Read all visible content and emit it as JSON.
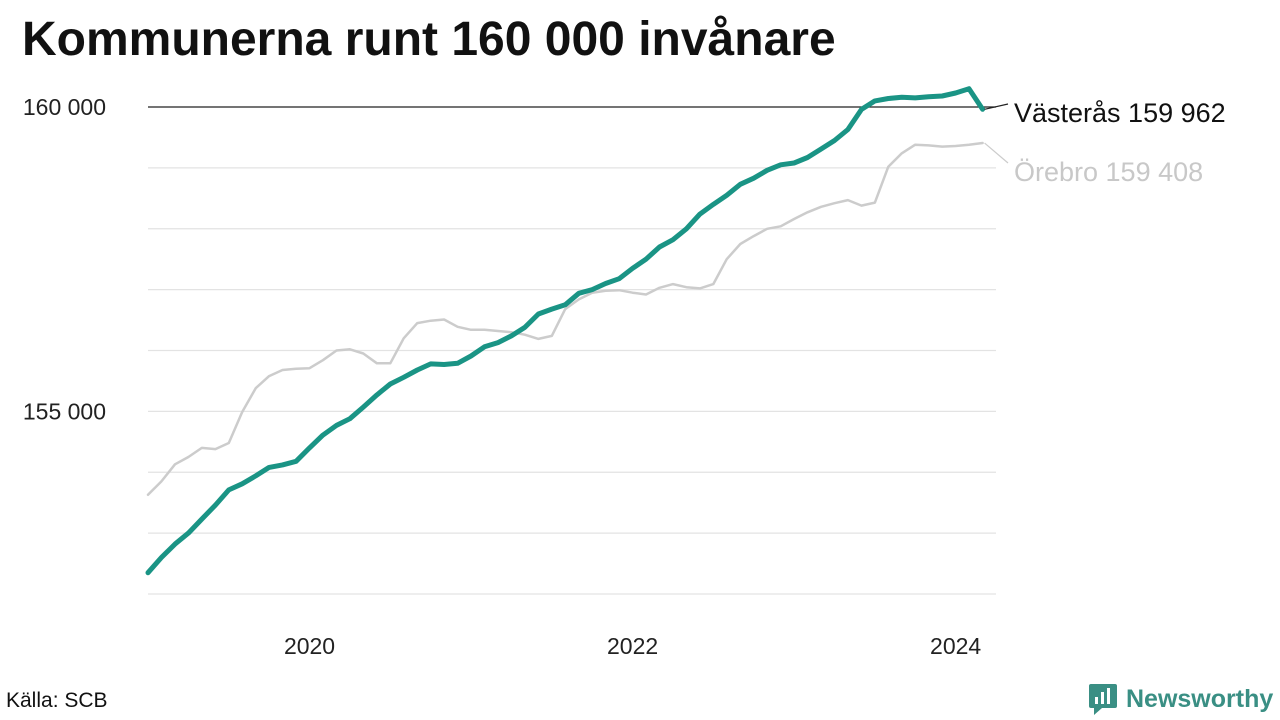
{
  "title": "Kommunerna runt 160 000 invånare",
  "source": "Källa: SCB",
  "brand": {
    "name": "Newsworthy",
    "icon": "newsworthy-logo-icon",
    "color": "#3a8f84"
  },
  "chart_data": {
    "type": "line",
    "title": "Kommunerna runt 160 000 invånare",
    "xlabel": "",
    "ylabel": "",
    "x_ticks": [
      {
        "label": "2020",
        "value": 2020.0
      },
      {
        "label": "2022",
        "value": 2022.0
      },
      {
        "label": "2024",
        "value": 2024.0
      }
    ],
    "y_ticks": [
      {
        "label": "155 000",
        "value": 155000
      },
      {
        "label": "160 000",
        "value": 160000
      }
    ],
    "xlim": [
      2019.0,
      2024.25
    ],
    "ylim": [
      152000,
      160000
    ],
    "grid": true,
    "reference_line": 160000,
    "series": [
      {
        "name": "Örebro",
        "end_label": "Örebro 159 408",
        "color": "#cccccc",
        "x": [
          2019.0,
          2019.083,
          2019.167,
          2019.25,
          2019.333,
          2019.417,
          2019.5,
          2019.583,
          2019.667,
          2019.75,
          2019.833,
          2019.917,
          2020.0,
          2020.083,
          2020.167,
          2020.25,
          2020.333,
          2020.417,
          2020.5,
          2020.583,
          2020.667,
          2020.75,
          2020.833,
          2020.917,
          2021.0,
          2021.083,
          2021.167,
          2021.25,
          2021.333,
          2021.417,
          2021.5,
          2021.583,
          2021.667,
          2021.75,
          2021.833,
          2021.917,
          2022.0,
          2022.083,
          2022.167,
          2022.25,
          2022.333,
          2022.417,
          2022.5,
          2022.583,
          2022.667,
          2022.75,
          2022.833,
          2022.917,
          2023.0,
          2023.083,
          2023.167,
          2023.25,
          2023.333,
          2023.417,
          2023.5,
          2023.583,
          2023.667,
          2023.75,
          2023.833,
          2023.917,
          2024.0,
          2024.083,
          2024.167
        ],
        "values": [
          153630,
          153850,
          154130,
          154250,
          154400,
          154380,
          154480,
          154990,
          155380,
          155580,
          155680,
          155700,
          155710,
          155840,
          156000,
          156020,
          155950,
          155790,
          155790,
          156200,
          156450,
          156490,
          156510,
          156390,
          156340,
          156340,
          156320,
          156300,
          156260,
          156190,
          156240,
          156680,
          156840,
          156950,
          156980,
          156990,
          156950,
          156920,
          157030,
          157090,
          157040,
          157020,
          157090,
          157500,
          157750,
          157880,
          158000,
          158040,
          158160,
          158270,
          158360,
          158420,
          158470,
          158380,
          158430,
          159020,
          159240,
          159380,
          159370,
          159350,
          159360,
          159380,
          159408
        ]
      },
      {
        "name": "Västerås",
        "end_label": "Västerås 159 962",
        "color": "#1a9485",
        "x": [
          2019.0,
          2019.083,
          2019.167,
          2019.25,
          2019.333,
          2019.417,
          2019.5,
          2019.583,
          2019.667,
          2019.75,
          2019.833,
          2019.917,
          2020.0,
          2020.083,
          2020.167,
          2020.25,
          2020.333,
          2020.417,
          2020.5,
          2020.583,
          2020.667,
          2020.75,
          2020.833,
          2020.917,
          2021.0,
          2021.083,
          2021.167,
          2021.25,
          2021.333,
          2021.417,
          2021.5,
          2021.583,
          2021.667,
          2021.75,
          2021.833,
          2021.917,
          2022.0,
          2022.083,
          2022.167,
          2022.25,
          2022.333,
          2022.417,
          2022.5,
          2022.583,
          2022.667,
          2022.75,
          2022.833,
          2022.917,
          2023.0,
          2023.083,
          2023.167,
          2023.25,
          2023.333,
          2023.417,
          2023.5,
          2023.583,
          2023.667,
          2023.75,
          2023.833,
          2023.917,
          2024.0,
          2024.083,
          2024.167
        ],
        "values": [
          152350,
          152600,
          152820,
          153000,
          153230,
          153460,
          153710,
          153810,
          153940,
          154080,
          154120,
          154180,
          154400,
          154610,
          154770,
          154880,
          155070,
          155270,
          155450,
          155560,
          155680,
          155780,
          155770,
          155790,
          155910,
          156060,
          156130,
          156240,
          156380,
          156600,
          156680,
          156750,
          156940,
          157000,
          157100,
          157180,
          157350,
          157500,
          157700,
          157820,
          158000,
          158240,
          158400,
          158550,
          158730,
          158830,
          158960,
          159050,
          159080,
          159170,
          159310,
          159450,
          159630,
          159960,
          160100,
          160140,
          160160,
          160150,
          160170,
          160180,
          160230,
          160300,
          159962
        ]
      }
    ]
  }
}
